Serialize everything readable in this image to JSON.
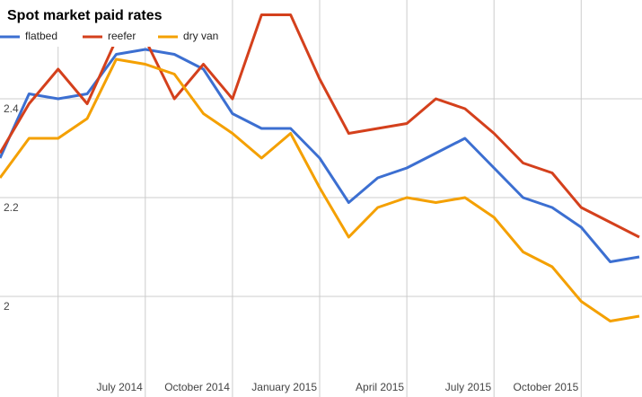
{
  "chart_data": {
    "type": "line",
    "title": "Spot market paid rates",
    "categories": [
      null,
      null,
      null,
      null,
      null,
      "July 2014",
      null,
      null,
      "October 2014",
      null,
      null,
      "January 2015",
      null,
      null,
      "April 2015",
      null,
      null,
      "July 2015",
      null,
      null,
      "October 2015",
      null,
      null
    ],
    "series": [
      {
        "name": "flatbed",
        "color": "#3c6fd1",
        "values": [
          2.28,
          2.41,
          2.4,
          2.41,
          2.49,
          2.5,
          2.49,
          2.46,
          2.37,
          2.34,
          2.34,
          2.28,
          2.19,
          2.24,
          2.26,
          2.29,
          2.32,
          2.26,
          2.2,
          2.18,
          2.14,
          2.07,
          2.08
        ]
      },
      {
        "name": "reefer",
        "color": "#d4401c",
        "values": [
          2.29,
          2.39,
          2.46,
          2.39,
          2.52,
          2.52,
          2.4,
          2.47,
          2.4,
          2.57,
          2.57,
          2.44,
          2.33,
          2.34,
          2.35,
          2.4,
          2.38,
          2.33,
          2.27,
          2.25,
          2.18,
          2.15,
          2.12
        ]
      },
      {
        "name": "dry van",
        "color": "#f4a000",
        "values": [
          2.24,
          2.32,
          2.32,
          2.36,
          2.48,
          2.47,
          2.45,
          2.37,
          2.33,
          2.28,
          2.33,
          2.22,
          2.12,
          2.18,
          2.2,
          2.19,
          2.2,
          2.16,
          2.09,
          2.06,
          1.99,
          1.95,
          1.96
        ]
      }
    ],
    "ylim": [
      1.8,
      2.6
    ],
    "yticks": [
      2,
      2.2,
      2.4
    ],
    "grid": true
  }
}
